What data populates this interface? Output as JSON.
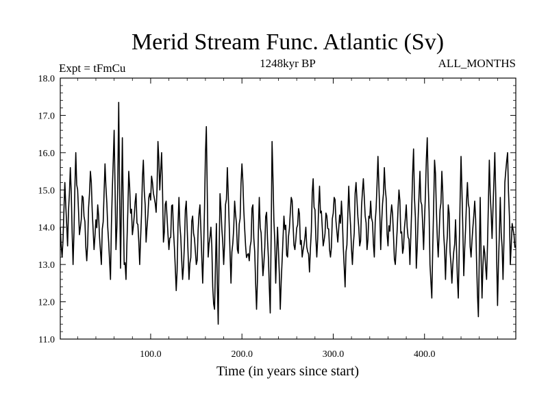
{
  "chart_data": {
    "type": "line",
    "title": "Merid Stream Func. Atlantic (Sv)",
    "subtitle": "1248kyr BP",
    "left_label": "Expt = tFmCu",
    "right_label": "ALL_MONTHS",
    "xlabel": "Time (in years since start)",
    "ylabel": "",
    "xlim": [
      1,
      500
    ],
    "ylim": [
      11.0,
      18.0
    ],
    "x_ticks": [
      100,
      200,
      300,
      400
    ],
    "x_tick_labels": [
      "100.0",
      "200.0",
      "300.0",
      "400.0"
    ],
    "y_ticks": [
      11,
      12,
      13,
      14,
      15,
      16,
      17,
      18
    ],
    "y_tick_labels": [
      "11.0",
      "12.0",
      "13.0",
      "14.0",
      "15.0",
      "16.0",
      "17.0",
      "18.0"
    ],
    "grid": false,
    "series": [
      {
        "name": "Merid Stream Func. Atlantic",
        "x_start": 1,
        "x_step": 1,
        "anchors": [
          [
            1,
            14.0
          ],
          [
            3,
            13.2
          ],
          [
            6,
            15.2
          ],
          [
            9,
            13.5
          ],
          [
            12,
            15.6
          ],
          [
            15,
            13.0
          ],
          [
            18,
            16.0
          ],
          [
            22,
            13.8
          ],
          [
            26,
            14.8
          ],
          [
            30,
            13.1
          ],
          [
            34,
            15.5
          ],
          [
            38,
            13.4
          ],
          [
            42,
            14.6
          ],
          [
            46,
            13.0
          ],
          [
            50,
            15.7
          ],
          [
            54,
            13.6
          ],
          [
            56,
            12.6
          ],
          [
            58,
            15.0
          ],
          [
            60,
            16.6
          ],
          [
            62,
            13.4
          ],
          [
            64,
            15.2
          ],
          [
            65,
            17.35
          ],
          [
            67,
            12.9
          ],
          [
            69,
            16.4
          ],
          [
            71,
            13.0
          ],
          [
            73,
            12.6
          ],
          [
            76,
            15.5
          ],
          [
            80,
            13.8
          ],
          [
            84,
            14.9
          ],
          [
            88,
            13.0
          ],
          [
            92,
            15.8
          ],
          [
            95,
            13.6
          ],
          [
            98,
            14.8
          ],
          [
            102,
            15.2
          ],
          [
            106,
            14.4
          ],
          [
            108,
            16.3
          ],
          [
            110,
            15.0
          ],
          [
            112,
            16.0
          ],
          [
            114,
            13.6
          ],
          [
            117,
            14.7
          ],
          [
            120,
            13.4
          ],
          [
            124,
            14.6
          ],
          [
            128,
            12.3
          ],
          [
            131,
            14.8
          ],
          [
            135,
            12.6
          ],
          [
            139,
            14.7
          ],
          [
            142,
            12.6
          ],
          [
            146,
            14.3
          ],
          [
            150,
            13.0
          ],
          [
            154,
            14.6
          ],
          [
            157,
            12.5
          ],
          [
            161,
            16.7
          ],
          [
            163,
            13.2
          ],
          [
            166,
            14.0
          ],
          [
            168,
            12.4
          ],
          [
            170,
            11.8
          ],
          [
            172,
            14.1
          ],
          [
            174,
            11.4
          ],
          [
            176,
            14.9
          ],
          [
            180,
            13.0
          ],
          [
            184,
            15.6
          ],
          [
            188,
            12.5
          ],
          [
            192,
            14.7
          ],
          [
            196,
            13.3
          ],
          [
            200,
            15.7
          ],
          [
            204,
            13.5
          ],
          [
            208,
            13.1
          ],
          [
            212,
            14.6
          ],
          [
            216,
            11.8
          ],
          [
            219,
            14.8
          ],
          [
            223,
            12.7
          ],
          [
            227,
            14.4
          ],
          [
            231,
            11.7
          ],
          [
            233,
            16.3
          ],
          [
            237,
            12.5
          ],
          [
            239,
            14.0
          ],
          [
            242,
            11.8
          ],
          [
            246,
            14.3
          ],
          [
            250,
            13.2
          ],
          [
            254,
            14.8
          ],
          [
            258,
            13.4
          ],
          [
            262,
            14.5
          ],
          [
            266,
            13.2
          ],
          [
            270,
            14.0
          ],
          [
            274,
            12.8
          ],
          [
            278,
            15.3
          ],
          [
            282,
            13.2
          ],
          [
            285,
            15.1
          ],
          [
            289,
            13.5
          ],
          [
            293,
            14.3
          ],
          [
            297,
            13.2
          ],
          [
            301,
            14.8
          ],
          [
            305,
            13.6
          ],
          [
            309,
            14.7
          ],
          [
            313,
            12.4
          ],
          [
            317,
            15.1
          ],
          [
            321,
            13.0
          ],
          [
            325,
            15.2
          ],
          [
            329,
            13.5
          ],
          [
            333,
            15.3
          ],
          [
            337,
            13.4
          ],
          [
            341,
            14.7
          ],
          [
            345,
            13.2
          ],
          [
            349,
            15.9
          ],
          [
            352,
            13.4
          ],
          [
            356,
            15.6
          ],
          [
            360,
            13.5
          ],
          [
            364,
            14.6
          ],
          [
            368,
            13.0
          ],
          [
            372,
            15.0
          ],
          [
            376,
            13.3
          ],
          [
            380,
            14.6
          ],
          [
            384,
            13.0
          ],
          [
            388,
            16.1
          ],
          [
            391,
            12.9
          ],
          [
            395,
            15.5
          ],
          [
            399,
            13.4
          ],
          [
            403,
            16.4
          ],
          [
            406,
            13.0
          ],
          [
            408,
            12.1
          ],
          [
            411,
            15.8
          ],
          [
            415,
            13.2
          ],
          [
            419,
            15.5
          ],
          [
            423,
            12.6
          ],
          [
            426,
            14.6
          ],
          [
            430,
            12.5
          ],
          [
            434,
            14.2
          ],
          [
            437,
            12.1
          ],
          [
            440,
            15.9
          ],
          [
            443,
            12.7
          ],
          [
            447,
            15.2
          ],
          [
            451,
            13.2
          ],
          [
            455,
            14.7
          ],
          [
            459,
            11.6
          ],
          [
            461,
            14.8
          ],
          [
            463,
            12.1
          ],
          [
            465,
            13.5
          ],
          [
            468,
            12.6
          ],
          [
            471,
            15.8
          ],
          [
            474,
            13.7
          ],
          [
            477,
            16.0
          ],
          [
            480,
            11.9
          ],
          [
            483,
            14.8
          ],
          [
            486,
            12.6
          ],
          [
            488,
            15.2
          ],
          [
            491,
            16.0
          ],
          [
            494,
            13.0
          ],
          [
            496,
            14.1
          ],
          [
            500,
            13.5
          ]
        ]
      }
    ]
  }
}
